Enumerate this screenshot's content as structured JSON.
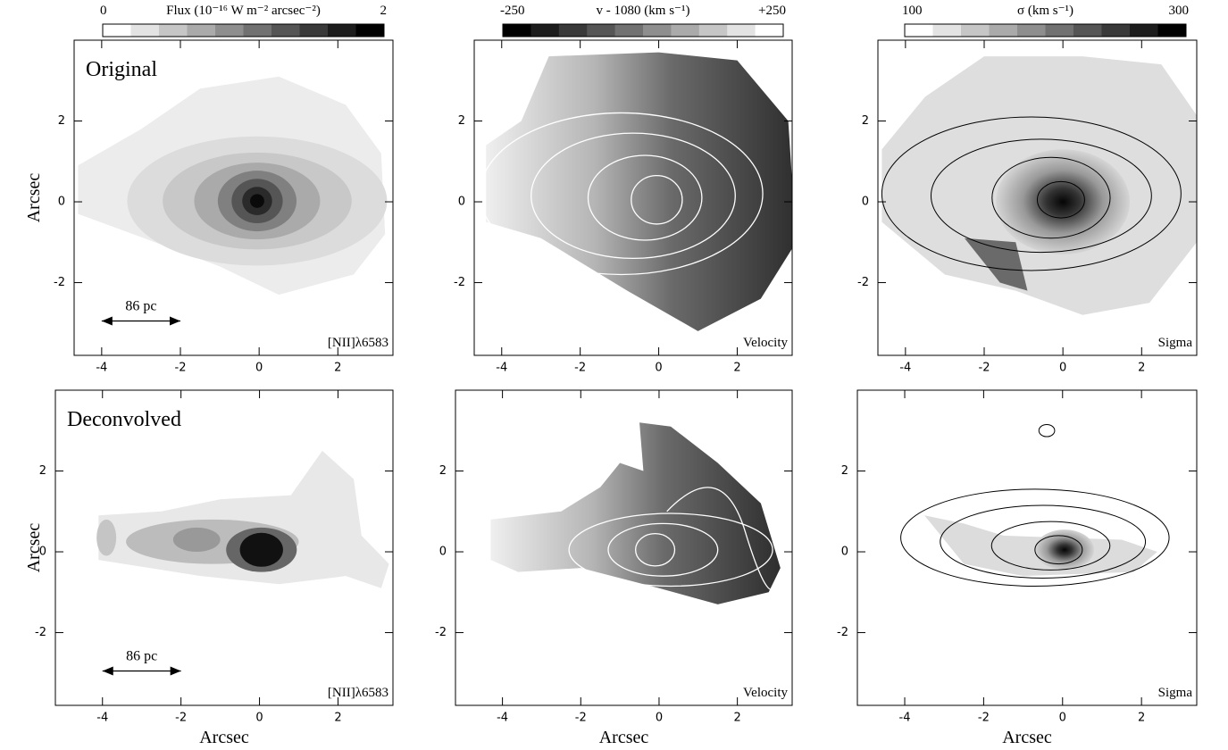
{
  "colorbars": [
    {
      "label": "Flux (10⁻¹⁶ W m⁻² arcsec⁻²)",
      "ticks": [
        0,
        2
      ],
      "direction": "white-to-black"
    },
    {
      "label": "v - 1080  (km s⁻¹)",
      "ticks": [
        -250,
        {
          "value": 250,
          "label": "+250"
        }
      ],
      "direction": "black-to-white"
    },
    {
      "label": "σ  (km s⁻¹)",
      "ticks": [
        100,
        300
      ],
      "direction": "white-to-black"
    }
  ],
  "panels": [
    {
      "type": "flux",
      "label": "Original",
      "scale_label": "86 pc",
      "corner_label": "[NII]λ6583",
      "ylabel": "Arcsec",
      "xlim": [
        -4.7,
        3.4
      ],
      "ylim": [
        -3.8,
        4.0
      ],
      "xticks": [
        -4,
        -2,
        0,
        2
      ],
      "yticks": [
        -2,
        0,
        2
      ]
    },
    {
      "type": "velocity",
      "corner_label": "Velocity",
      "xlim": [
        -4.7,
        3.4
      ],
      "ylim": [
        -3.8,
        4.0
      ],
      "xticks": [
        -4,
        -2,
        0,
        2
      ],
      "yticks": [
        -2,
        0,
        2
      ]
    },
    {
      "type": "sigma",
      "corner_label": "Sigma",
      "xlim": [
        -4.7,
        3.4
      ],
      "ylim": [
        -3.8,
        4.0
      ],
      "xticks": [
        -4,
        -2,
        0,
        2
      ],
      "yticks": [
        -2,
        0,
        2
      ]
    },
    {
      "type": "flux-deconvolved",
      "label": "Deconvolved",
      "scale_label": "86 pc",
      "corner_label": "[NII]λ6583",
      "ylabel": "Arcsec",
      "xlabel": "Arcsec",
      "xlim": [
        -5.2,
        3.4
      ],
      "ylim": [
        -3.8,
        4.0
      ],
      "xticks": [
        -4,
        -2,
        0,
        2
      ],
      "yticks": [
        -2,
        0,
        2
      ]
    },
    {
      "type": "velocity-deconvolved",
      "corner_label": "Velocity",
      "xlabel": "Arcsec",
      "xlim": [
        -5.2,
        3.4
      ],
      "ylim": [
        -3.8,
        4.0
      ],
      "xticks": [
        -4,
        -2,
        0,
        2
      ],
      "yticks": [
        -2,
        0,
        2
      ]
    },
    {
      "type": "sigma-deconvolved",
      "corner_label": "Sigma",
      "xlabel": "Arcsec",
      "xlim": [
        -5.2,
        3.4
      ],
      "ylim": [
        -3.8,
        4.0
      ],
      "xticks": [
        -4,
        -2,
        0,
        2
      ],
      "yticks": [
        -2,
        0,
        2
      ]
    }
  ]
}
